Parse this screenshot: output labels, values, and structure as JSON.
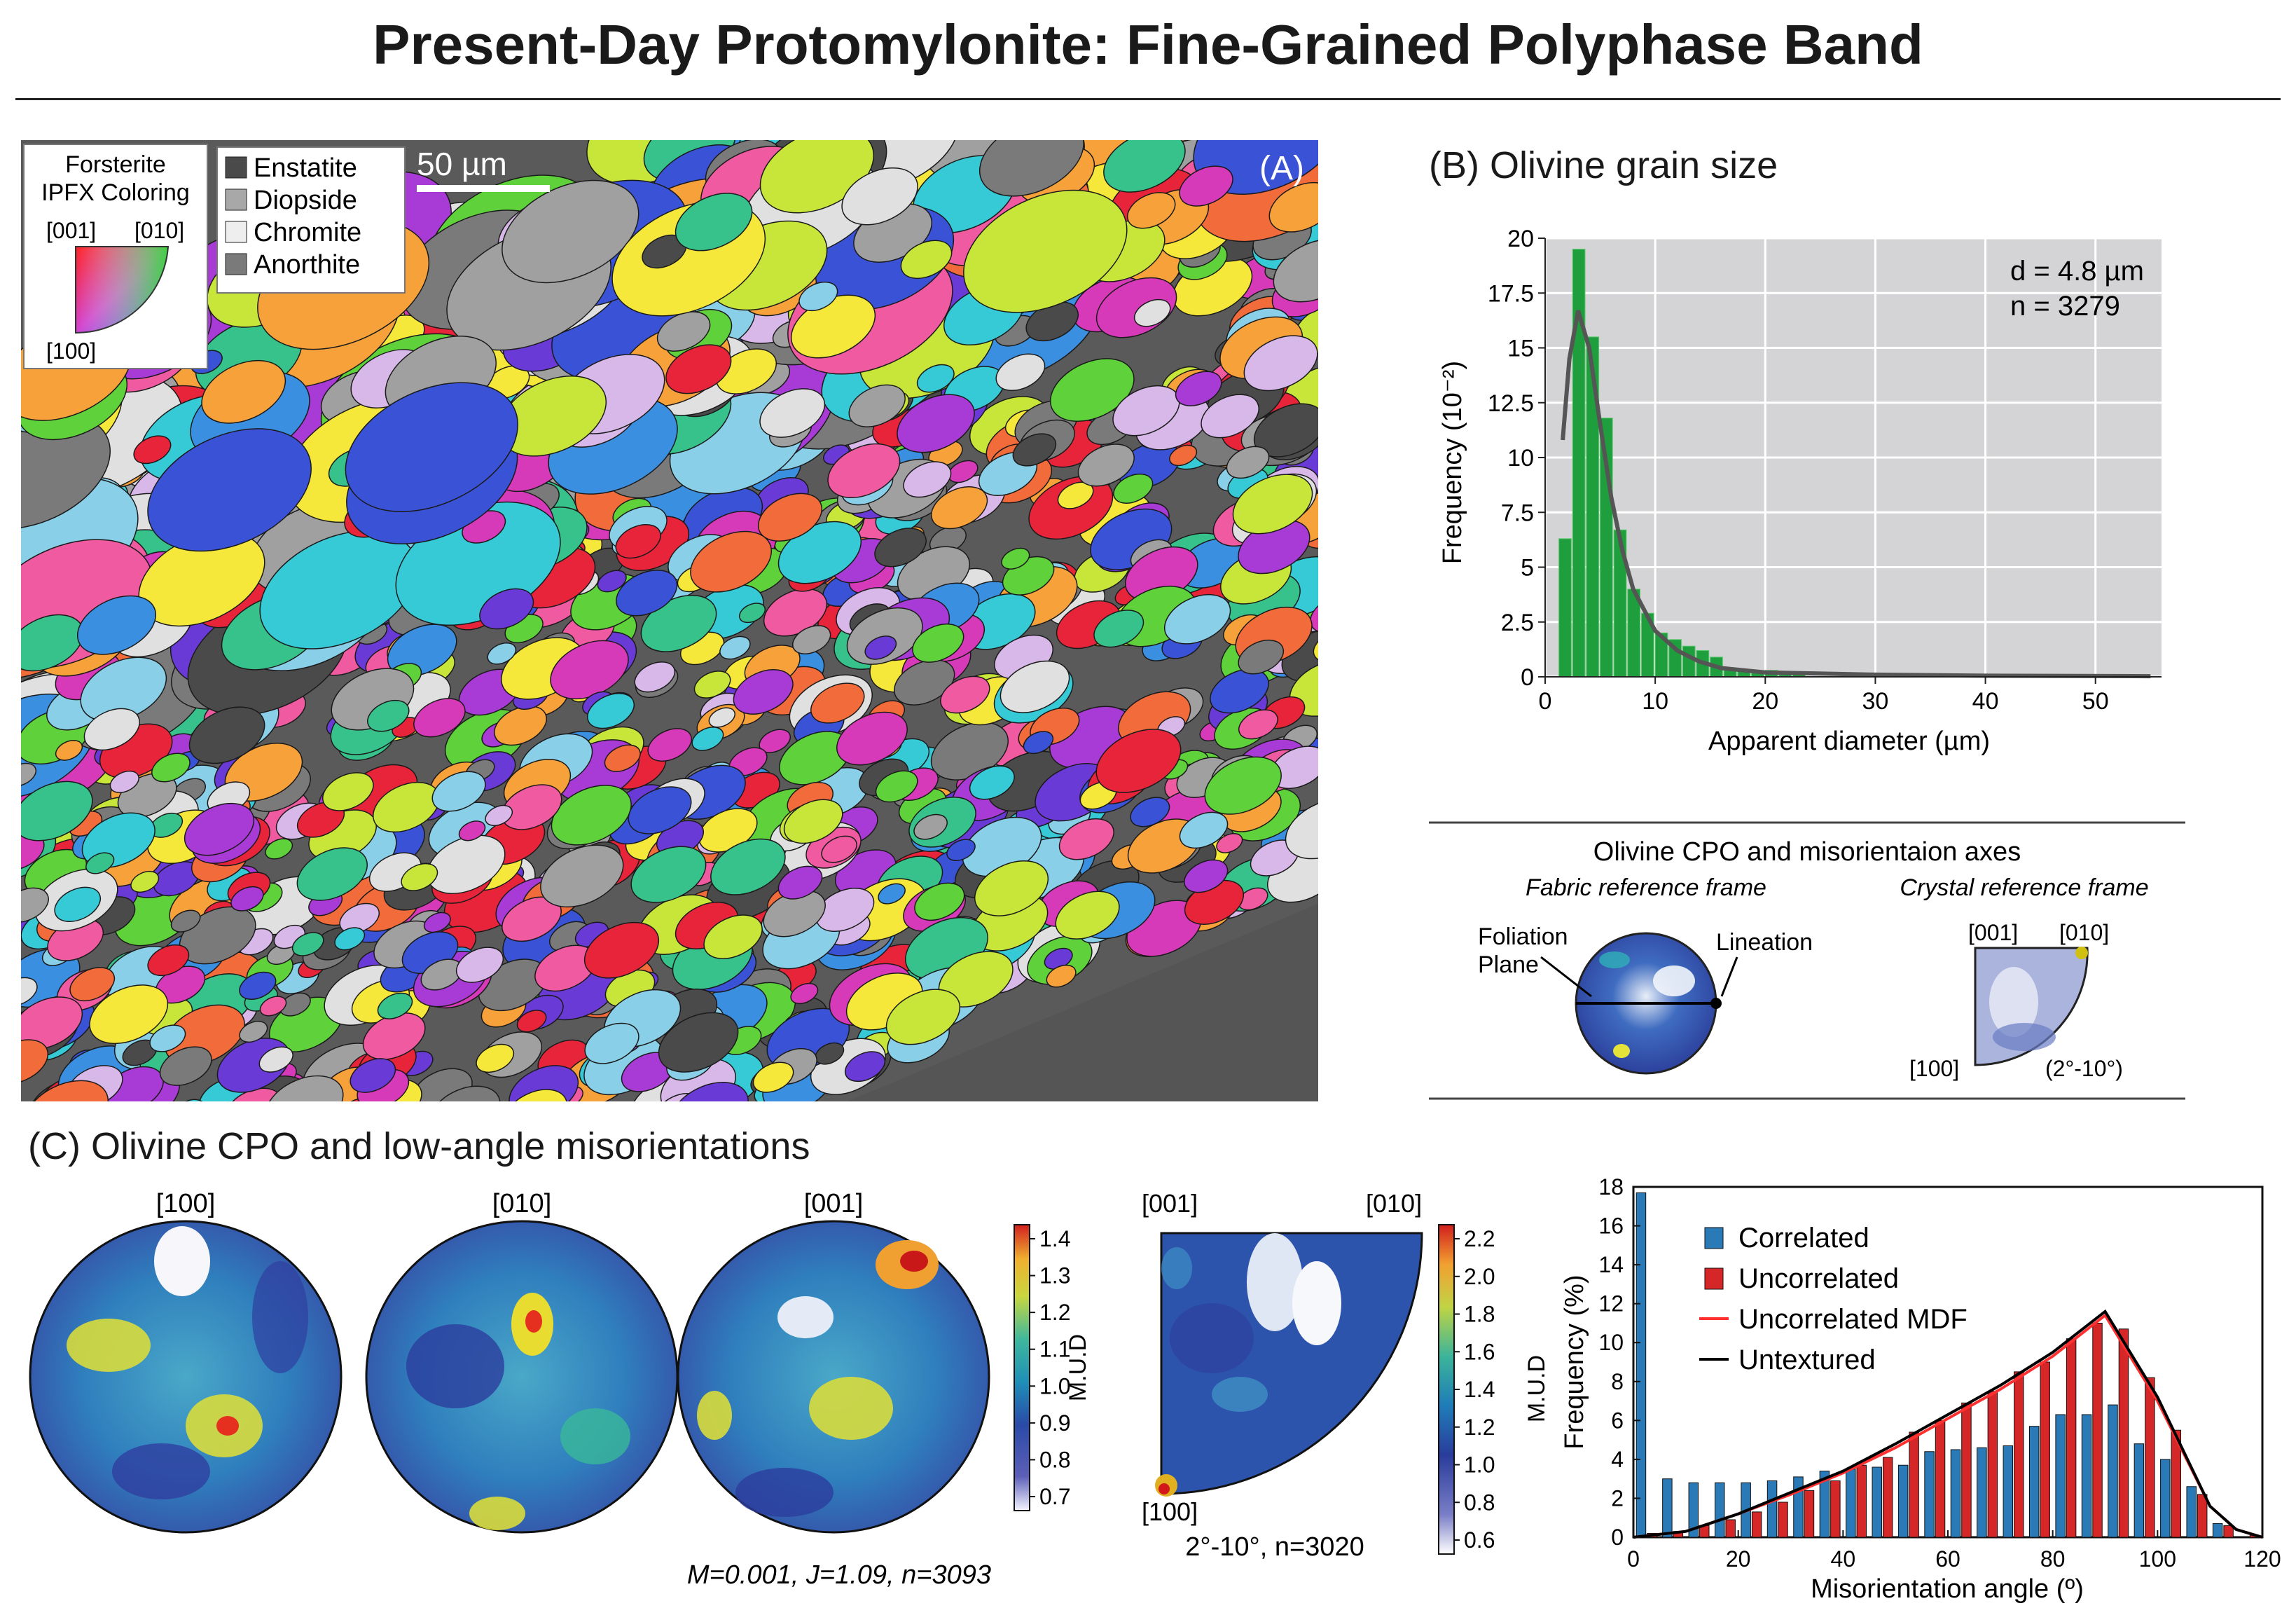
{
  "figure_title": "Present-Day Protomylonite: Fine-Grained Polyphase Band",
  "panel_a": {
    "label": "(A)",
    "scale_bar": "50 µm",
    "ipf_key": {
      "title_line1": "Forsterite",
      "title_line2": "IPFX Coloring",
      "axis_001": "[001]",
      "axis_010": "[010]",
      "axis_100": "[100]"
    },
    "phase_legend": [
      {
        "name": "Enstatite",
        "color": "#4a4a4a"
      },
      {
        "name": "Diopside",
        "color": "#a8a8a8"
      },
      {
        "name": "Chromite",
        "color": "#eeeeee"
      },
      {
        "name": "Anorthite",
        "color": "#7a7a7a"
      }
    ]
  },
  "panel_b": {
    "title": "(B) Olivine grain size",
    "stats_d": "d = 4.8 µm",
    "stats_n": "n = 3279",
    "xlabel": "Apparent diameter (µm)",
    "ylabel": "Frequency (10⁻²)"
  },
  "cpo_key": {
    "title": "Olivine CPO and misorientaion axes",
    "fabric_frame": "Fabric reference frame",
    "crystal_frame": "Crystal reference frame",
    "foliation_line1": "Foliation",
    "foliation_line2": "Plane",
    "lineation": "Lineation",
    "axis_001": "[001]",
    "axis_010": "[010]",
    "axis_100": "[100]",
    "range": "(2°-10°)"
  },
  "panel_c": {
    "title": "(C) Olivine CPO and low-angle misorientations",
    "pole_figures": [
      "[100]",
      "[010]",
      "[001]"
    ],
    "pf_stats": "M=0.001, J=1.09, n=3093",
    "colorbar1": {
      "label": "M.U.D",
      "ticks": [
        "1.4",
        "1.3",
        "1.2",
        "1.1",
        "1.0",
        "0.9",
        "0.8",
        "0.7"
      ]
    },
    "ipf_labels": {
      "axis_001": "[001]",
      "axis_010": "[010]",
      "axis_100": "[100]"
    },
    "ipf_stats": "2°-10°, n=3020",
    "colorbar2": {
      "label": "M.U.D",
      "ticks": [
        "2.2",
        "2.0",
        "1.8",
        "1.6",
        "1.4",
        "1.2",
        "1.0",
        "0.8",
        "0.6"
      ]
    }
  },
  "chart_data": [
    {
      "type": "bar",
      "title": "(B) Olivine grain size",
      "xlabel": "Apparent diameter (µm)",
      "ylabel": "Frequency (10⁻²)",
      "xlim": [
        0,
        56
      ],
      "ylim": [
        0,
        20
      ],
      "xticks": [
        0,
        10,
        20,
        30,
        40,
        50
      ],
      "yticks": [
        0,
        2.5,
        5,
        7.5,
        10,
        12.5,
        15,
        17.5,
        20
      ],
      "bin_width": 1.25,
      "bins_start": [
        1.25,
        2.5,
        3.75,
        5,
        6.25,
        7.5,
        8.75,
        10,
        11.25,
        12.5,
        13.75,
        15,
        16.25,
        17.5,
        18.75,
        20,
        21.25,
        22.5
      ],
      "values": [
        6.3,
        19.5,
        15.5,
        11.8,
        6.7,
        4.0,
        2.9,
        2.0,
        1.7,
        1.4,
        1.2,
        0.9,
        0.3,
        0.3,
        0.2,
        0.3,
        0.1,
        0.1
      ],
      "fit_curve": {
        "x": [
          1.6,
          2.2,
          3.0,
          4.0,
          5.0,
          6.0,
          7.0,
          8.0,
          10.0,
          12.0,
          14.0,
          16.0,
          20.0,
          30.0,
          40.0,
          55.0
        ],
        "y": [
          10.8,
          14.5,
          16.7,
          15.0,
          11.5,
          8.2,
          5.8,
          4.0,
          2.1,
          1.2,
          0.7,
          0.4,
          0.2,
          0.1,
          0.05,
          0.03
        ]
      },
      "annotations": [
        "d = 4.8 µm",
        "n = 3279"
      ],
      "grid": true
    },
    {
      "type": "bar",
      "xlabel": "Misorientation angle (º)",
      "ylabel": "Frequency (%)",
      "xlim": [
        0,
        120
      ],
      "ylim": [
        0,
        18
      ],
      "xticks": [
        0,
        20,
        40,
        60,
        80,
        100,
        120
      ],
      "yticks": [
        0,
        2,
        4,
        6,
        8,
        10,
        12,
        14,
        16,
        18
      ],
      "x": [
        2.5,
        7.5,
        12.5,
        17.5,
        22.5,
        27.5,
        32.5,
        37.5,
        42.5,
        47.5,
        52.5,
        57.5,
        62.5,
        67.5,
        72.5,
        77.5,
        82.5,
        87.5,
        92.5,
        97.5,
        102.5,
        107.5,
        112.5,
        117.5
      ],
      "series": [
        {
          "name": "Correlated",
          "color": "#2a7ab8",
          "values": [
            17.7,
            3.0,
            2.8,
            2.8,
            2.8,
            2.9,
            3.1,
            3.4,
            3.5,
            3.6,
            3.7,
            4.4,
            4.5,
            4.6,
            4.7,
            5.7,
            6.3,
            6.3,
            6.8,
            4.8,
            4.0,
            2.6,
            0.7,
            0.0
          ]
        },
        {
          "name": "Uncorrelated",
          "color": "#d62728",
          "values": [
            0.2,
            0.3,
            0.6,
            0.9,
            1.3,
            1.8,
            2.4,
            2.9,
            3.7,
            4.1,
            5.4,
            6.0,
            6.9,
            7.5,
            8.5,
            9.0,
            10.2,
            11.0,
            10.7,
            8.2,
            5.5,
            2.2,
            0.6,
            0.1
          ]
        },
        {
          "name": "Uncorrelated MDF",
          "color": "#ff4040",
          "kind": "line",
          "x": [
            0,
            10,
            20,
            30,
            40,
            50,
            60,
            70,
            80,
            90,
            100,
            110,
            115,
            120
          ],
          "values": [
            0,
            0.3,
            1.2,
            2.2,
            3.3,
            4.6,
            6.1,
            7.6,
            9.3,
            11.4,
            7.0,
            1.6,
            0.4,
            0.0
          ]
        },
        {
          "name": "Untextured",
          "color": "#000000",
          "kind": "line",
          "x": [
            0,
            10,
            20,
            30,
            40,
            50,
            60,
            70,
            80,
            90,
            100,
            110,
            115,
            120
          ],
          "values": [
            0,
            0.3,
            1.2,
            2.3,
            3.4,
            4.8,
            6.3,
            7.8,
            9.5,
            11.6,
            7.2,
            1.6,
            0.4,
            0.0
          ]
        }
      ],
      "legend": "top-left"
    }
  ]
}
